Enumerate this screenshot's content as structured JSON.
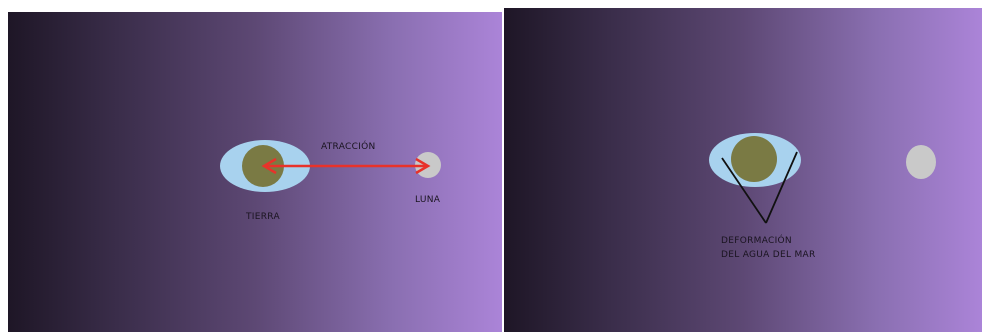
{
  "panels": [
    {
      "labels": {
        "attraction": "ATRACCIÓN",
        "earth": "TIERRA",
        "moon": "LUNA"
      }
    },
    {
      "labels": {
        "deformation_line1": "DEFORMACIÓN",
        "deformation_line2": "DEL AGUA DEL MAR"
      }
    }
  ],
  "colors": {
    "water": "#a8d2ee",
    "land": "#7a7a44",
    "moon": "#c9c9c9",
    "arrow": "#e8322a",
    "pointer": "#111111",
    "text": "#1a1420"
  }
}
